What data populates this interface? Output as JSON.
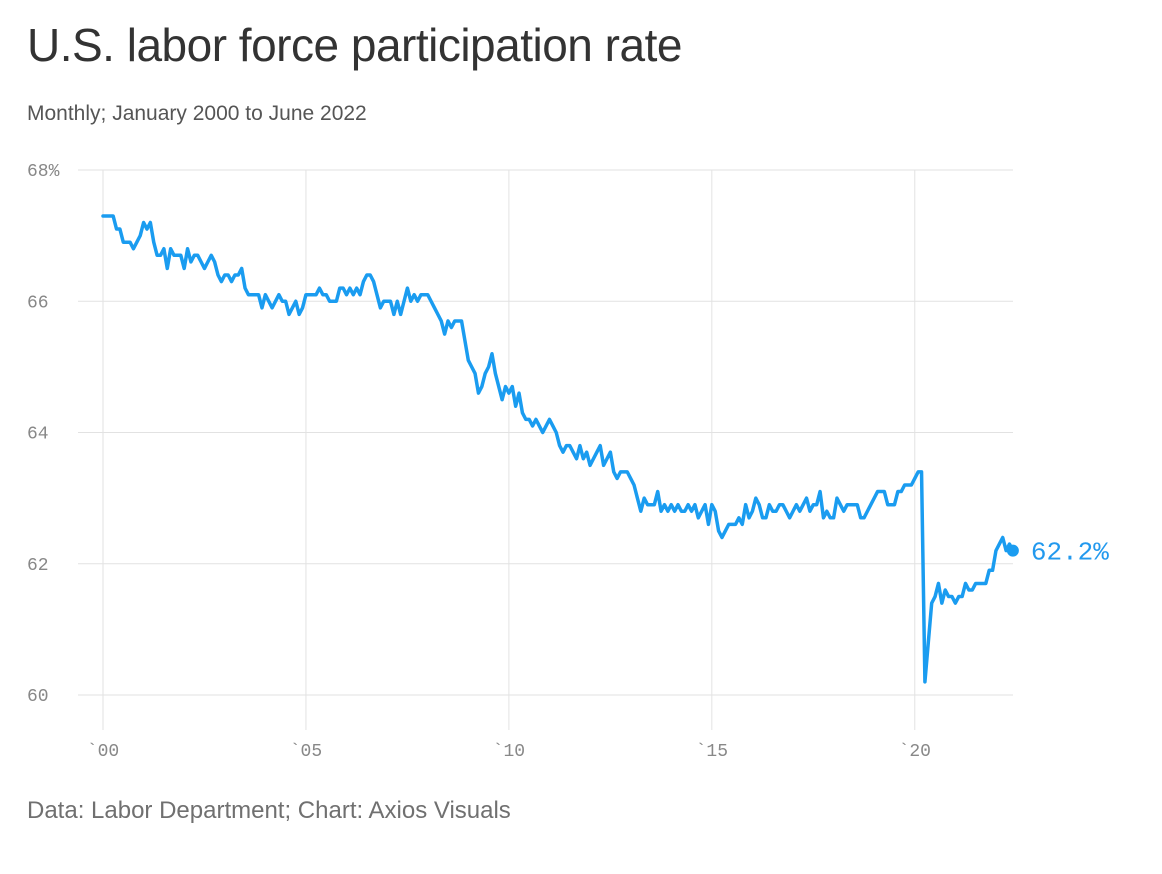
{
  "title": "U.S. labor force participation rate",
  "subtitle": "Monthly; January 2000 to June 2022",
  "source": "Data: Labor Department; Chart: Axios Visuals",
  "colors": {
    "line": "#1a9cf0",
    "grid": "#e2e2e2",
    "tick_text": "#888888"
  },
  "chart_data": {
    "type": "line",
    "title": "U.S. labor force participation rate",
    "subtitle": "Monthly; January 2000 to June 2022",
    "xlabel": "",
    "ylabel": "",
    "xlim": [
      2000.0,
      2022.42
    ],
    "ylim": [
      60,
      68
    ],
    "x_ticks": [
      {
        "value": 2000,
        "label": "`00"
      },
      {
        "value": 2005,
        "label": "`05"
      },
      {
        "value": 2010,
        "label": "`10"
      },
      {
        "value": 2015,
        "label": "`15"
      },
      {
        "value": 2020,
        "label": "`20"
      }
    ],
    "y_ticks": [
      {
        "value": 68,
        "label": "68%"
      },
      {
        "value": 66,
        "label": "66"
      },
      {
        "value": 64,
        "label": "64"
      },
      {
        "value": 62,
        "label": "62"
      },
      {
        "value": 60,
        "label": "60"
      }
    ],
    "grid": true,
    "end_label": "62.2%",
    "series": [
      {
        "x_start": "2000-01",
        "frequency": "monthly",
        "values": [
          67.3,
          67.3,
          67.3,
          67.3,
          67.1,
          67.1,
          66.9,
          66.9,
          66.9,
          66.8,
          66.9,
          67.0,
          67.2,
          67.1,
          67.2,
          66.9,
          66.7,
          66.7,
          66.8,
          66.5,
          66.8,
          66.7,
          66.7,
          66.7,
          66.5,
          66.8,
          66.6,
          66.7,
          66.7,
          66.6,
          66.5,
          66.6,
          66.7,
          66.6,
          66.4,
          66.3,
          66.4,
          66.4,
          66.3,
          66.4,
          66.4,
          66.5,
          66.2,
          66.1,
          66.1,
          66.1,
          66.1,
          65.9,
          66.1,
          66.0,
          65.9,
          66.0,
          66.1,
          66.0,
          66.0,
          65.8,
          65.9,
          66.0,
          65.8,
          65.9,
          66.1,
          66.1,
          66.1,
          66.1,
          66.2,
          66.1,
          66.1,
          66.0,
          66.0,
          66.0,
          66.2,
          66.2,
          66.1,
          66.2,
          66.1,
          66.2,
          66.1,
          66.3,
          66.4,
          66.4,
          66.3,
          66.1,
          65.9,
          66.0,
          66.0,
          66.0,
          65.8,
          66.0,
          65.8,
          66.0,
          66.2,
          66.0,
          66.1,
          66.0,
          66.1,
          66.1,
          66.1,
          66.0,
          65.9,
          65.8,
          65.7,
          65.5,
          65.7,
          65.6,
          65.7,
          65.7,
          65.7,
          65.4,
          65.1,
          65.0,
          64.9,
          64.6,
          64.7,
          64.9,
          65.0,
          65.2,
          64.9,
          64.7,
          64.5,
          64.7,
          64.6,
          64.7,
          64.4,
          64.6,
          64.3,
          64.2,
          64.2,
          64.1,
          64.2,
          64.1,
          64.0,
          64.1,
          64.2,
          64.1,
          64.0,
          63.8,
          63.7,
          63.8,
          63.8,
          63.7,
          63.6,
          63.8,
          63.6,
          63.7,
          63.5,
          63.6,
          63.7,
          63.8,
          63.5,
          63.6,
          63.7,
          63.4,
          63.3,
          63.4,
          63.4,
          63.4,
          63.3,
          63.2,
          63.0,
          62.8,
          63.0,
          62.9,
          62.9,
          62.9,
          63.1,
          62.8,
          62.9,
          62.8,
          62.9,
          62.8,
          62.9,
          62.8,
          62.8,
          62.9,
          62.8,
          62.9,
          62.7,
          62.8,
          62.9,
          62.6,
          62.9,
          62.8,
          62.5,
          62.4,
          62.5,
          62.6,
          62.6,
          62.6,
          62.7,
          62.6,
          62.9,
          62.7,
          62.8,
          63.0,
          62.9,
          62.7,
          62.7,
          62.9,
          62.8,
          62.8,
          62.9,
          62.9,
          62.8,
          62.7,
          62.8,
          62.9,
          62.8,
          62.9,
          63.0,
          62.8,
          62.9,
          62.9,
          63.1,
          62.7,
          62.8,
          62.7,
          62.7,
          63.0,
          62.9,
          62.8,
          62.9,
          62.9,
          62.9,
          62.9,
          62.7,
          62.7,
          62.8,
          62.9,
          63.0,
          63.1,
          63.1,
          63.1,
          62.9,
          62.9,
          62.9,
          63.1,
          63.1,
          63.2,
          63.2,
          63.2,
          63.3,
          63.4,
          63.4,
          60.2,
          60.8,
          61.4,
          61.5,
          61.7,
          61.4,
          61.6,
          61.5,
          61.5,
          61.4,
          61.5,
          61.5,
          61.7,
          61.6,
          61.6,
          61.7,
          61.7,
          61.7,
          61.7,
          61.9,
          61.9,
          62.2,
          62.3,
          62.4,
          62.2,
          62.3,
          62.2
        ]
      }
    ]
  }
}
